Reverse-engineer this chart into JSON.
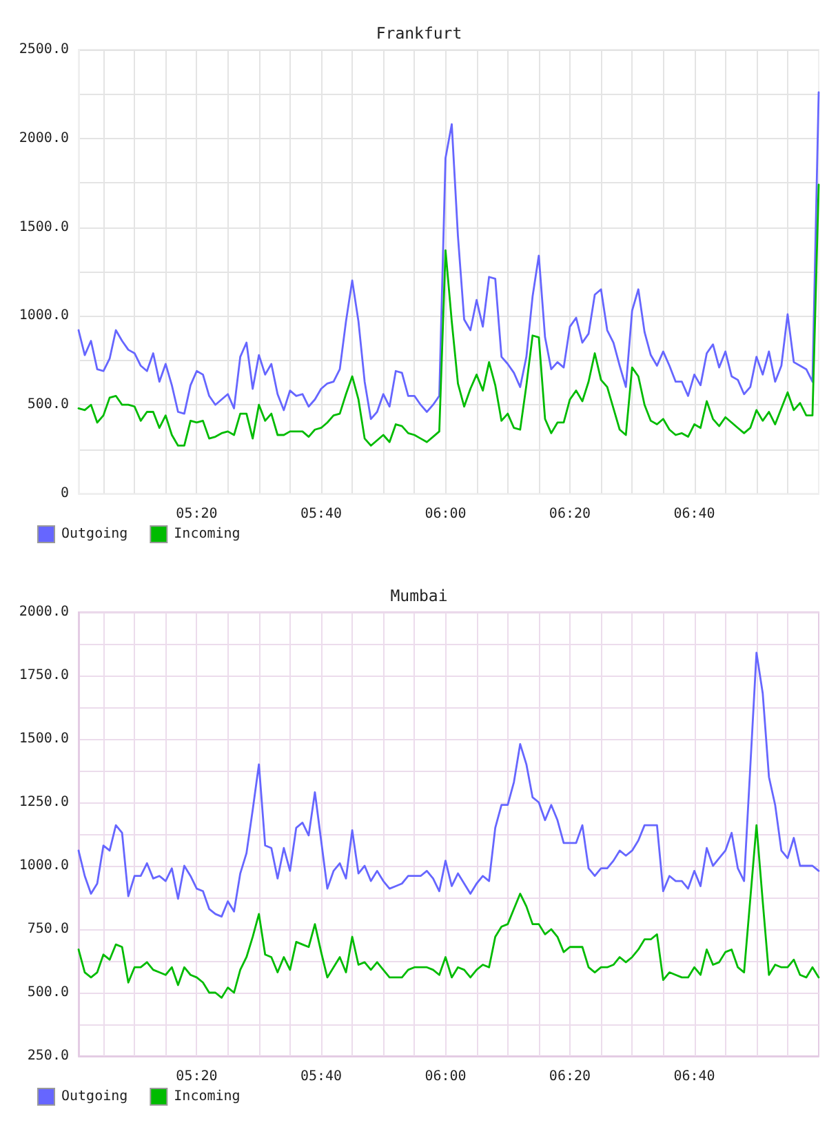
{
  "chart_data": [
    {
      "type": "line",
      "title": "Frankfurt",
      "x": [
        5.0167,
        5.0333,
        5.05,
        5.0667,
        5.0833,
        5.1,
        5.1167,
        5.1333,
        5.15,
        5.1667,
        5.1833,
        5.2,
        5.2167,
        5.2333,
        5.25,
        5.2667,
        5.2833,
        5.3,
        5.3167,
        5.3333,
        5.35,
        5.3667,
        5.3833,
        5.4,
        5.4167,
        5.4333,
        5.45,
        5.4667,
        5.4833,
        5.5,
        5.5167,
        5.5333,
        5.55,
        5.5667,
        5.5833,
        5.6,
        5.6167,
        5.6333,
        5.65,
        5.6667,
        5.6833,
        5.7,
        5.7167,
        5.7333,
        5.75,
        5.7667,
        5.7833,
        5.8,
        5.8167,
        5.8333,
        5.85,
        5.8667,
        5.8833,
        5.9,
        5.9167,
        5.9333,
        5.95,
        5.9667,
        5.9833,
        6,
        6.0167,
        6.0333,
        6.05,
        6.0667,
        6.0833,
        6.1,
        6.1167,
        6.1333,
        6.15,
        6.1667,
        6.1833,
        6.2,
        6.2167,
        6.2333,
        6.25,
        6.2667,
        6.2833,
        6.3,
        6.3167,
        6.3333,
        6.35,
        6.3667,
        6.3833,
        6.4,
        6.4167,
        6.4333,
        6.45,
        6.4667,
        6.4833,
        6.5,
        6.5167,
        6.5333,
        6.55,
        6.5667,
        6.5833,
        6.6,
        6.6167,
        6.6333,
        6.65,
        6.6667,
        6.6833,
        6.7,
        6.7167,
        6.7333,
        6.75,
        6.7667,
        6.7833,
        6.8,
        6.8167,
        6.8333,
        6.85,
        6.8667,
        6.8833,
        6.9,
        6.9167,
        6.9333,
        6.95,
        6.9667,
        6.9833,
        7
      ],
      "xlim": [
        5.0167,
        7
      ],
      "xticks": [
        {
          "value": 5.0833,
          "label": null
        },
        {
          "value": 5.1667,
          "label": null
        },
        {
          "value": 5.25,
          "label": null
        },
        {
          "value": 5.3333,
          "label": "05:20"
        },
        {
          "value": 5.4167,
          "label": null
        },
        {
          "value": 5.5,
          "label": null
        },
        {
          "value": 5.5833,
          "label": null
        },
        {
          "value": 5.6667,
          "label": "05:40"
        },
        {
          "value": 5.75,
          "label": null
        },
        {
          "value": 5.8333,
          "label": null
        },
        {
          "value": 5.9167,
          "label": null
        },
        {
          "value": 6,
          "label": "06:00"
        },
        {
          "value": 6.0833,
          "label": null
        },
        {
          "value": 6.1667,
          "label": null
        },
        {
          "value": 6.25,
          "label": null
        },
        {
          "value": 6.3333,
          "label": "06:20"
        },
        {
          "value": 6.4167,
          "label": null
        },
        {
          "value": 6.5,
          "label": null
        },
        {
          "value": 6.5833,
          "label": null
        },
        {
          "value": 6.6667,
          "label": "06:40"
        },
        {
          "value": 6.75,
          "label": null
        },
        {
          "value": 6.8333,
          "label": null
        },
        {
          "value": 6.9167,
          "label": null
        }
      ],
      "ylim": [
        0,
        2500
      ],
      "yticks": [
        0,
        {
          "value": 250,
          "label": null
        },
        {
          "value": 500,
          "label": "500.0"
        },
        {
          "value": 750,
          "label": null
        },
        {
          "value": 1000,
          "label": "1000.0"
        },
        {
          "value": 1250,
          "label": null
        },
        {
          "value": 1500,
          "label": "1500.0"
        },
        {
          "value": 1750,
          "label": null
        },
        {
          "value": 2000,
          "label": "2000.0"
        },
        {
          "value": 2250,
          "label": null
        },
        {
          "value": 2500,
          "label": "2500.0"
        }
      ],
      "series": [
        {
          "name": "Outgoing",
          "color": "#6666ff",
          "values": [
            920,
            780,
            860,
            700,
            690,
            760,
            920,
            860,
            810,
            790,
            720,
            690,
            790,
            630,
            730,
            610,
            460,
            450,
            610,
            690,
            670,
            550,
            500,
            530,
            560,
            480,
            770,
            850,
            590,
            780,
            670,
            730,
            560,
            470,
            580,
            550,
            560,
            490,
            530,
            590,
            620,
            630,
            700,
            970,
            1200,
            970,
            630,
            420,
            460,
            560,
            490,
            690,
            680,
            550,
            550,
            500,
            460,
            500,
            550,
            1890,
            2080,
            1450,
            980,
            920,
            1090,
            940,
            1220,
            1210,
            770,
            730,
            680,
            600,
            770,
            1110,
            1340,
            880,
            700,
            740,
            710,
            940,
            990,
            850,
            900,
            1120,
            1150,
            920,
            850,
            720,
            600,
            1030,
            1150,
            910,
            780,
            720,
            800,
            720,
            630,
            630,
            550,
            670,
            610,
            790,
            840,
            710,
            800,
            660,
            640,
            560,
            600,
            770,
            670,
            800,
            630,
            720,
            1010,
            740,
            720,
            700,
            630,
            2260
          ]
        },
        {
          "name": "Incoming",
          "color": "#00bb00",
          "values": [
            480,
            470,
            500,
            400,
            440,
            540,
            550,
            500,
            500,
            490,
            410,
            460,
            460,
            370,
            440,
            330,
            270,
            270,
            410,
            400,
            410,
            310,
            320,
            340,
            350,
            330,
            450,
            450,
            310,
            500,
            410,
            450,
            330,
            330,
            350,
            350,
            350,
            320,
            360,
            370,
            400,
            440,
            450,
            560,
            660,
            530,
            310,
            270,
            300,
            330,
            290,
            390,
            380,
            340,
            330,
            310,
            290,
            320,
            350,
            1370,
            970,
            620,
            490,
            590,
            670,
            580,
            740,
            610,
            410,
            450,
            370,
            360,
            610,
            890,
            880,
            420,
            340,
            400,
            400,
            530,
            580,
            520,
            630,
            790,
            640,
            600,
            480,
            360,
            330,
            710,
            660,
            500,
            410,
            390,
            420,
            360,
            330,
            340,
            320,
            390,
            370,
            520,
            420,
            380,
            430,
            400,
            370,
            340,
            370,
            470,
            410,
            460,
            390,
            480,
            570,
            470,
            510,
            440,
            440,
            1740
          ]
        }
      ],
      "grid": true,
      "legend": "bottom left"
    },
    {
      "type": "line",
      "title": "Mumbai",
      "x": [
        5.0167,
        5.0333,
        5.05,
        5.0667,
        5.0833,
        5.1,
        5.1167,
        5.1333,
        5.15,
        5.1667,
        5.1833,
        5.2,
        5.2167,
        5.2333,
        5.25,
        5.2667,
        5.2833,
        5.3,
        5.3167,
        5.3333,
        5.35,
        5.3667,
        5.3833,
        5.4,
        5.4167,
        5.4333,
        5.45,
        5.4667,
        5.4833,
        5.5,
        5.5167,
        5.5333,
        5.55,
        5.5667,
        5.5833,
        5.6,
        5.6167,
        5.6333,
        5.65,
        5.6667,
        5.6833,
        5.7,
        5.7167,
        5.7333,
        5.75,
        5.7667,
        5.7833,
        5.8,
        5.8167,
        5.8333,
        5.85,
        5.8667,
        5.8833,
        5.9,
        5.9167,
        5.9333,
        5.95,
        5.9667,
        5.9833,
        6,
        6.0167,
        6.0333,
        6.05,
        6.0667,
        6.0833,
        6.1,
        6.1167,
        6.1333,
        6.15,
        6.1667,
        6.1833,
        6.2,
        6.2167,
        6.2333,
        6.25,
        6.2667,
        6.2833,
        6.3,
        6.3167,
        6.3333,
        6.35,
        6.3667,
        6.3833,
        6.4,
        6.4167,
        6.4333,
        6.45,
        6.4667,
        6.4833,
        6.5,
        6.5167,
        6.5333,
        6.55,
        6.5667,
        6.5833,
        6.6,
        6.6167,
        6.6333,
        6.65,
        6.6667,
        6.6833,
        6.7,
        6.7167,
        6.7333,
        6.75,
        6.7667,
        6.7833,
        6.8,
        6.8167,
        6.8333,
        6.85,
        6.8667,
        6.8833,
        6.9,
        6.9167,
        6.9333,
        6.95,
        6.9667,
        6.9833,
        7
      ],
      "xlim": [
        5.0167,
        7
      ],
      "xticks": [
        {
          "value": 5.0833,
          "label": null
        },
        {
          "value": 5.1667,
          "label": null
        },
        {
          "value": 5.25,
          "label": null
        },
        {
          "value": 5.3333,
          "label": "05:20"
        },
        {
          "value": 5.4167,
          "label": null
        },
        {
          "value": 5.5,
          "label": null
        },
        {
          "value": 5.5833,
          "label": null
        },
        {
          "value": 5.6667,
          "label": "05:40"
        },
        {
          "value": 5.75,
          "label": null
        },
        {
          "value": 5.8333,
          "label": null
        },
        {
          "value": 5.9167,
          "label": null
        },
        {
          "value": 6,
          "label": "06:00"
        },
        {
          "value": 6.0833,
          "label": null
        },
        {
          "value": 6.1667,
          "label": null
        },
        {
          "value": 6.25,
          "label": null
        },
        {
          "value": 6.3333,
          "label": "06:20"
        },
        {
          "value": 6.4167,
          "label": null
        },
        {
          "value": 6.5,
          "label": null
        },
        {
          "value": 6.5833,
          "label": null
        },
        {
          "value": 6.6667,
          "label": "06:40"
        },
        {
          "value": 6.75,
          "label": null
        },
        {
          "value": 6.8333,
          "label": null
        },
        {
          "value": 6.9167,
          "label": null
        }
      ],
      "ylim": [
        250,
        2000
      ],
      "yticks": [
        {
          "value": 250,
          "label": "250.0"
        },
        {
          "value": 375,
          "label": null
        },
        {
          "value": 500,
          "label": "500.0"
        },
        {
          "value": 625,
          "label": null
        },
        {
          "value": 750,
          "label": "750.0"
        },
        {
          "value": 875,
          "label": null
        },
        {
          "value": 1000,
          "label": "1000.0"
        },
        {
          "value": 1125,
          "label": null
        },
        {
          "value": 1250,
          "label": "1250.0"
        },
        {
          "value": 1375,
          "label": null
        },
        {
          "value": 1500,
          "label": "1500.0"
        },
        {
          "value": 1625,
          "label": null
        },
        {
          "value": 1750,
          "label": "1750.0"
        },
        {
          "value": 1875,
          "label": null
        },
        {
          "value": 2000,
          "label": "2000.0"
        }
      ],
      "series": [
        {
          "name": "Outgoing",
          "color": "#6666ff",
          "values": [
            1060,
            960,
            890,
            930,
            1080,
            1060,
            1160,
            1130,
            880,
            960,
            960,
            1010,
            950,
            960,
            940,
            990,
            870,
            1000,
            960,
            910,
            900,
            830,
            810,
            800,
            860,
            820,
            970,
            1050,
            1220,
            1400,
            1080,
            1070,
            950,
            1070,
            980,
            1150,
            1170,
            1120,
            1290,
            1100,
            910,
            980,
            1010,
            950,
            1140,
            970,
            1000,
            940,
            980,
            940,
            910,
            920,
            930,
            960,
            960,
            960,
            980,
            950,
            900,
            1020,
            920,
            970,
            930,
            890,
            930,
            960,
            940,
            1150,
            1240,
            1240,
            1330,
            1480,
            1400,
            1270,
            1250,
            1180,
            1240,
            1180,
            1090,
            1090,
            1090,
            1160,
            990,
            960,
            990,
            990,
            1020,
            1060,
            1040,
            1060,
            1100,
            1160,
            1160,
            1160,
            900,
            960,
            940,
            940,
            910,
            980,
            920,
            1070,
            1000,
            1030,
            1060,
            1130,
            990,
            940,
            1390,
            1840,
            1680,
            1350,
            1240,
            1060,
            1030,
            1110,
            1000,
            1000,
            1000,
            980
          ]
        },
        {
          "name": "Incoming",
          "color": "#00bb00",
          "values": [
            670,
            580,
            560,
            580,
            650,
            630,
            690,
            680,
            540,
            600,
            600,
            620,
            590,
            580,
            570,
            600,
            530,
            600,
            570,
            560,
            540,
            500,
            500,
            480,
            520,
            500,
            590,
            640,
            720,
            810,
            650,
            640,
            580,
            640,
            590,
            700,
            690,
            680,
            770,
            660,
            560,
            600,
            640,
            580,
            720,
            610,
            620,
            590,
            620,
            590,
            560,
            560,
            560,
            590,
            600,
            600,
            600,
            590,
            570,
            640,
            560,
            600,
            590,
            560,
            590,
            610,
            600,
            720,
            760,
            770,
            830,
            890,
            840,
            770,
            770,
            730,
            750,
            720,
            660,
            680,
            680,
            680,
            600,
            580,
            600,
            600,
            610,
            640,
            620,
            640,
            670,
            710,
            710,
            730,
            550,
            580,
            570,
            560,
            560,
            600,
            570,
            670,
            610,
            620,
            660,
            670,
            600,
            580,
            870,
            1160,
            860,
            570,
            610,
            600,
            600,
            630,
            570,
            560,
            600,
            560
          ]
        }
      ],
      "grid": true,
      "legend": "bottom left"
    }
  ]
}
